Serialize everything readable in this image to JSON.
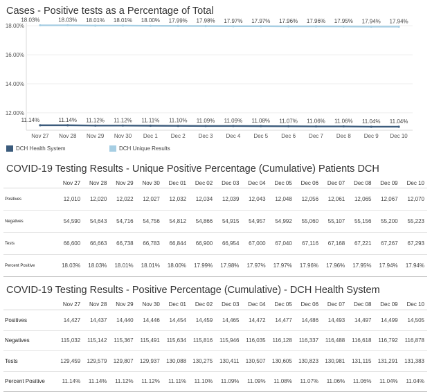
{
  "chart_title": "Cases - Positive tests as a Percentage of Total",
  "chart_data": {
    "type": "line",
    "categories": [
      "Nov 27",
      "Nov 28",
      "Nov 29",
      "Nov 30",
      "Dec 1",
      "Dec 2",
      "Dec 3",
      "Dec 4",
      "Dec 5",
      "Dec 6",
      "Dec 7",
      "Dec 8",
      "Dec 9",
      "Dec 10"
    ],
    "y_ticks": [
      "18.00%",
      "16.00%",
      "14.00%",
      "12.00%"
    ],
    "y_tick_values": [
      18,
      16,
      14,
      12
    ],
    "ylim": [
      10.8,
      18.2
    ],
    "grid": true,
    "legend_position": "bottom-left",
    "series": [
      {
        "name": "DCH Unique Results",
        "color": "#a6cee3",
        "values": [
          18.03,
          18.03,
          18.01,
          18.01,
          18.0,
          17.99,
          17.98,
          17.97,
          17.97,
          17.96,
          17.96,
          17.95,
          17.94,
          17.94
        ],
        "labels": [
          "18.03%",
          "18.03%",
          "18.01%",
          "18.01%",
          "18.00%",
          "17.99%",
          "17.98%",
          "17.97%",
          "17.97%",
          "17.96%",
          "17.96%",
          "17.95%",
          "17.94%",
          "17.94%"
        ]
      },
      {
        "name": "DCH Health System",
        "color": "#3b5b7c",
        "values": [
          11.14,
          11.14,
          11.12,
          11.12,
          11.11,
          11.1,
          11.09,
          11.09,
          11.08,
          11.07,
          11.06,
          11.06,
          11.04,
          11.04
        ],
        "labels": [
          "11.14%",
          "11.14%",
          "11.12%",
          "11.12%",
          "11.11%",
          "11.10%",
          "11.09%",
          "11.09%",
          "11.08%",
          "11.07%",
          "11.06%",
          "11.06%",
          "11.04%",
          "11.04%"
        ]
      }
    ]
  },
  "legend": {
    "health_system": "DCH Health System",
    "unique_results": "DCH Unique Results"
  },
  "table1": {
    "title": "COVID-19 Testing Results - Unique Positive Percentage (Cumulative) Patients DCH",
    "columns": [
      "Nov 27",
      "Nov 28",
      "Nov 29",
      "Nov 30",
      "Dec 01",
      "Dec 02",
      "Dec 03",
      "Dec 04",
      "Dec 05",
      "Dec 06",
      "Dec 07",
      "Dec 08",
      "Dec 09",
      "Dec 10"
    ],
    "rows": [
      {
        "label": "Positives",
        "values": [
          "12,010",
          "12,020",
          "12,022",
          "12,027",
          "12,032",
          "12,034",
          "12,039",
          "12,043",
          "12,048",
          "12,056",
          "12,061",
          "12,065",
          "12,067",
          "12,070"
        ]
      },
      {
        "label": "Negatives",
        "values": [
          "54,590",
          "54,643",
          "54,716",
          "54,756",
          "54,812",
          "54,866",
          "54,915",
          "54,957",
          "54,992",
          "55,060",
          "55,107",
          "55,156",
          "55,200",
          "55,223"
        ]
      },
      {
        "label": "Tests",
        "values": [
          "66,600",
          "66,663",
          "66,738",
          "66,783",
          "66,844",
          "66,900",
          "66,954",
          "67,000",
          "67,040",
          "67,116",
          "67,168",
          "67,221",
          "67,267",
          "67,293"
        ]
      },
      {
        "label": "Percent Positive",
        "values": [
          "18.03%",
          "18.03%",
          "18.01%",
          "18.01%",
          "18.00%",
          "17.99%",
          "17.98%",
          "17.97%",
          "17.97%",
          "17.96%",
          "17.96%",
          "17.95%",
          "17.94%",
          "17.94%"
        ]
      }
    ]
  },
  "table2": {
    "title": "COVID-19 Testing Results - Positive Percentage (Cumulative) - DCH Health System",
    "columns": [
      "Nov 27",
      "Nov 28",
      "Nov 29",
      "Nov 30",
      "Dec 01",
      "Dec 02",
      "Dec 03",
      "Dec 04",
      "Dec 05",
      "Dec 06",
      "Dec 07",
      "Dec 08",
      "Dec 09",
      "Dec 10"
    ],
    "rows": [
      {
        "label": "Positives",
        "values": [
          "14,427",
          "14,437",
          "14,440",
          "14,446",
          "14,454",
          "14,459",
          "14,465",
          "14,472",
          "14,477",
          "14,486",
          "14,493",
          "14,497",
          "14,499",
          "14,505"
        ]
      },
      {
        "label": "Negatives",
        "values": [
          "115,032",
          "115,142",
          "115,367",
          "115,491",
          "115,634",
          "115,816",
          "115,946",
          "116,035",
          "116,128",
          "116,337",
          "116,488",
          "116,618",
          "116,792",
          "116,878"
        ]
      },
      {
        "label": "Tests",
        "values": [
          "129,459",
          "129,579",
          "129,807",
          "129,937",
          "130,088",
          "130,275",
          "130,411",
          "130,507",
          "130,605",
          "130,823",
          "130,981",
          "131,115",
          "131,291",
          "131,383"
        ]
      },
      {
        "label": "Percent Positive",
        "values": [
          "11.14%",
          "11.14%",
          "11.12%",
          "11.12%",
          "11.11%",
          "11.10%",
          "11.09%",
          "11.09%",
          "11.08%",
          "11.07%",
          "11.06%",
          "11.06%",
          "11.04%",
          "11.04%"
        ]
      }
    ]
  }
}
